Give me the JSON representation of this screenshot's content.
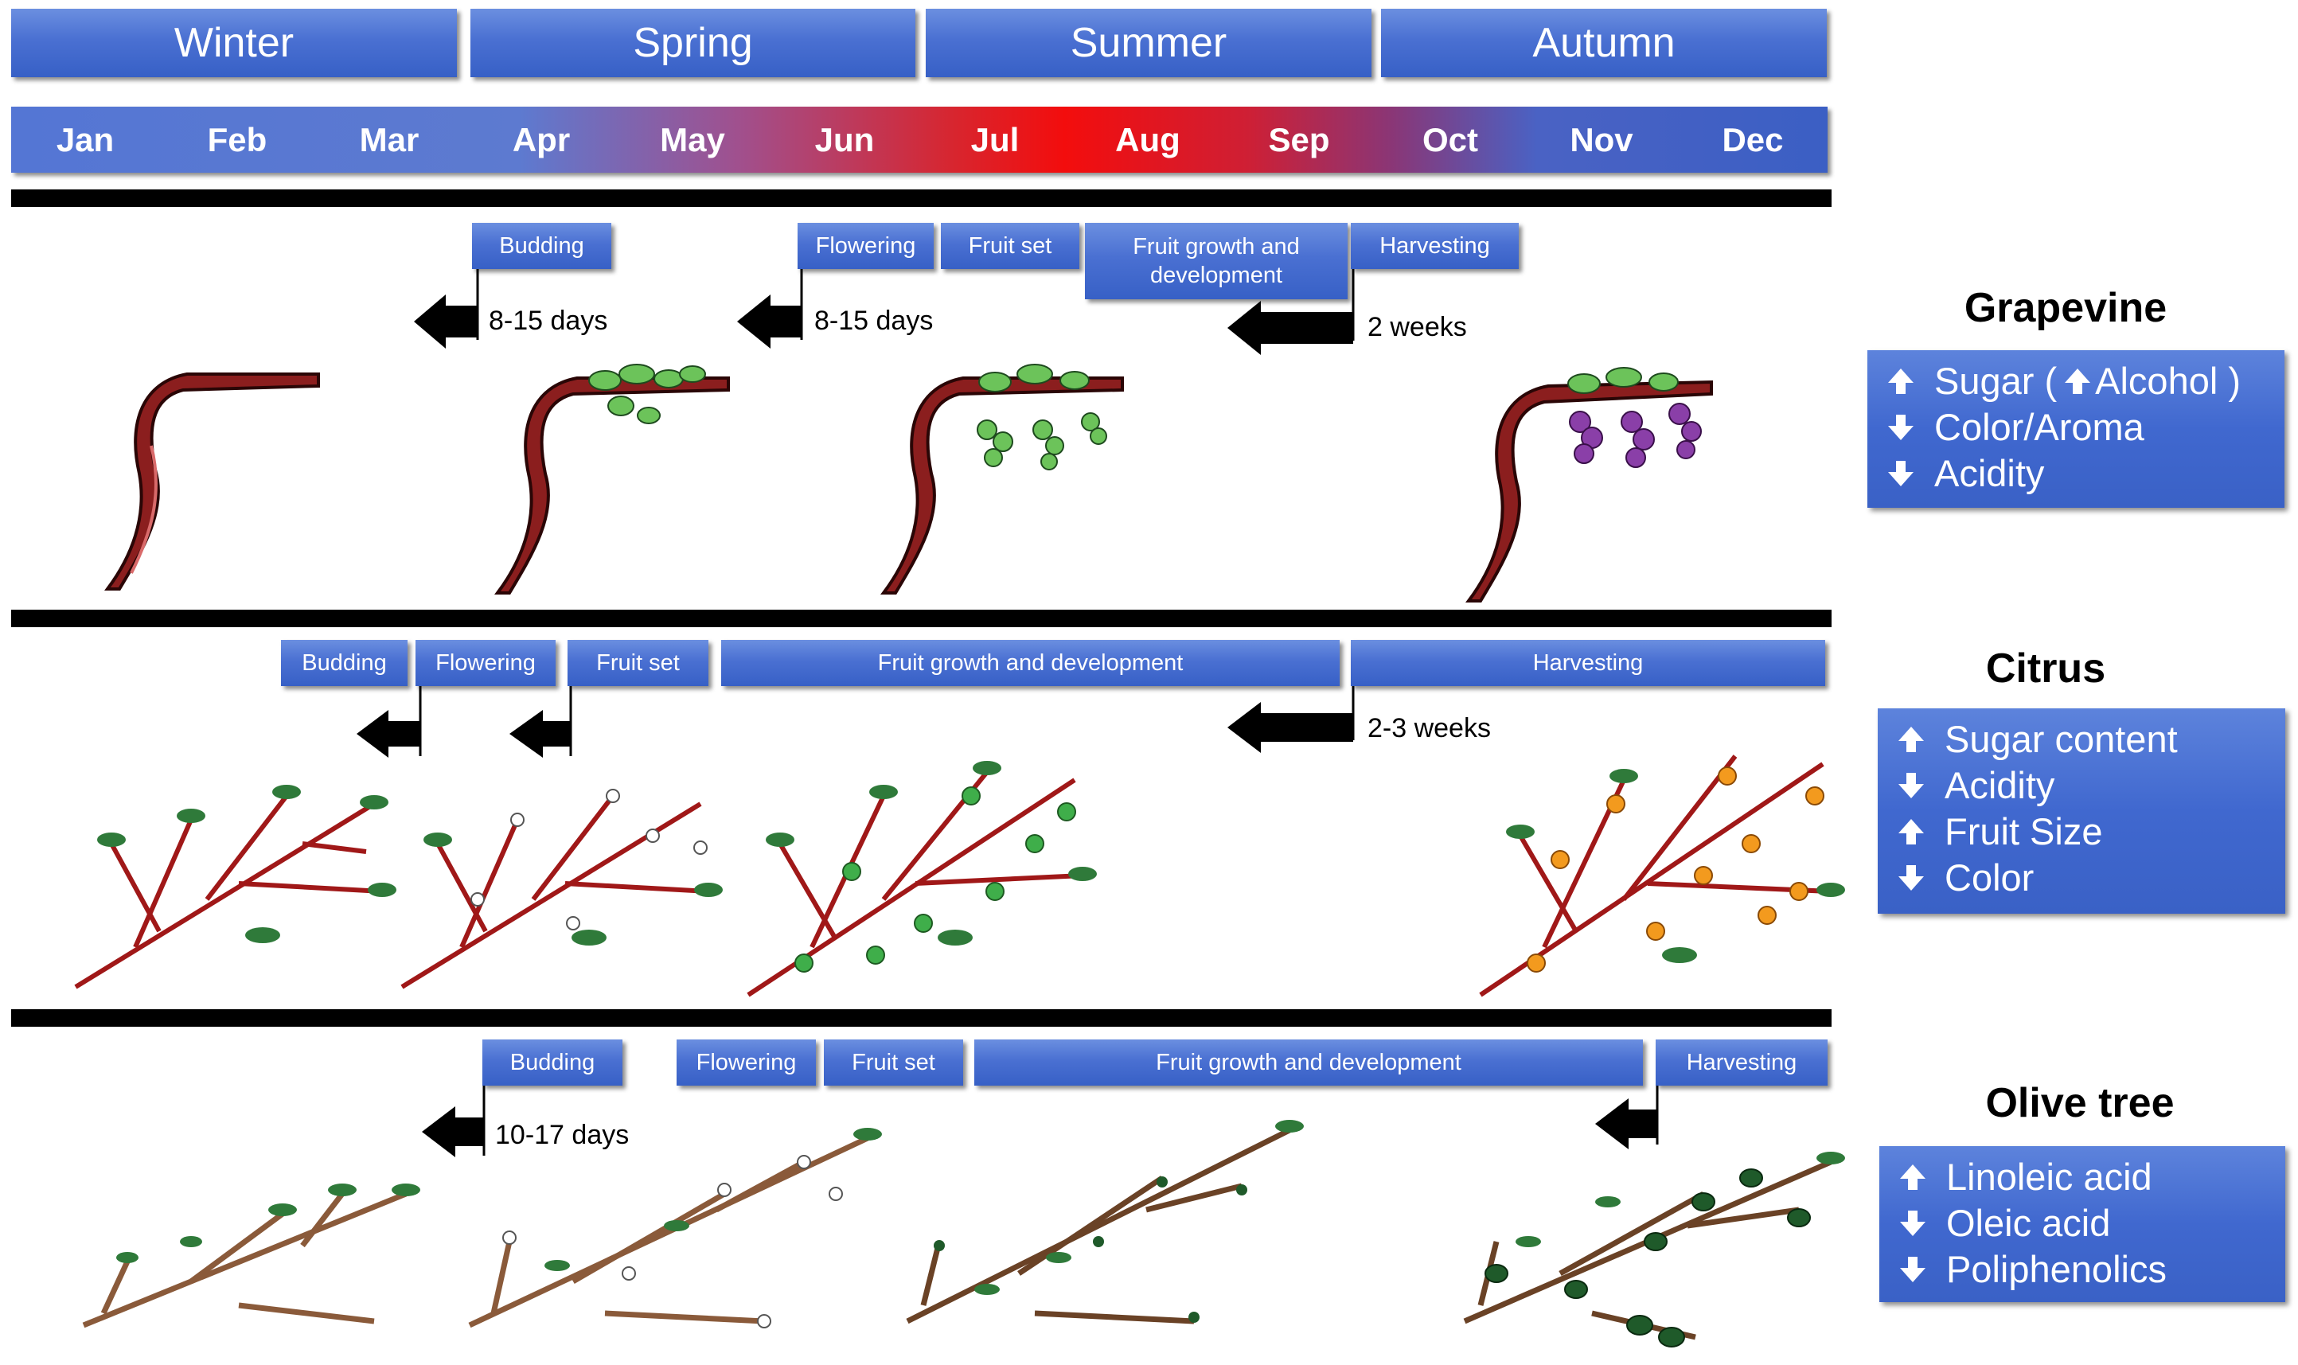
{
  "seasons": [
    "Winter",
    "Spring",
    "Summer",
    "Autumn"
  ],
  "months": [
    "Jan",
    "Feb",
    "Mar",
    "Apr",
    "May",
    "Jun",
    "Jul",
    "Aug",
    "Sep",
    "Oct",
    "Nov",
    "Dec"
  ],
  "grapevine": {
    "title": "Grapevine",
    "stages": {
      "budding": "Budding",
      "flowering": "Flowering",
      "fruit_set": "Fruit set",
      "growth": "Fruit growth and development",
      "harvesting": "Harvesting"
    },
    "intervals": [
      "8-15 days",
      "8-15 days",
      "2 weeks"
    ],
    "effects": [
      {
        "direction": "up",
        "text": "Sugar (",
        "extra_direction": "up",
        "extra_text": "Alcohol )"
      },
      {
        "direction": "down",
        "text": "Color/Aroma"
      },
      {
        "direction": "down",
        "text": "Acidity"
      }
    ]
  },
  "citrus": {
    "title": "Citrus",
    "stages": {
      "budding": "Budding",
      "flowering": "Flowering",
      "fruit_set": "Fruit set",
      "growth": "Fruit growth and development",
      "harvesting": "Harvesting"
    },
    "intervals": [
      "2-3 weeks"
    ],
    "effects": [
      {
        "direction": "up",
        "text": "Sugar content"
      },
      {
        "direction": "down",
        "text": "Acidity"
      },
      {
        "direction": "up",
        "text": "Fruit Size"
      },
      {
        "direction": "down",
        "text": "Color"
      }
    ]
  },
  "olive": {
    "title": "Olive tree",
    "stages": {
      "budding": "Budding",
      "flowering": "Flowering",
      "fruit_set": "Fruit set",
      "growth": "Fruit growth and development",
      "harvesting": "Harvesting"
    },
    "intervals": [
      "10-17 days"
    ],
    "effects": [
      {
        "direction": "up",
        "text": "Linoleic acid"
      },
      {
        "direction": "down",
        "text": "Oleic acid"
      },
      {
        "direction": "down",
        "text": "Poliphenolics"
      }
    ]
  },
  "colors": {
    "box": "#4a70d2",
    "bark_grape": "#8b1e1e",
    "bark_citrus": "#a01818",
    "bark_olive": "#8a5a3a",
    "leaf": "#2f7a3a",
    "grape_green": "#6cc35a",
    "grape_purple": "#8a3fa8",
    "citrus_green": "#3fae4a",
    "citrus_orange": "#f39a1e",
    "olive_fruit": "#1f5a2a"
  }
}
